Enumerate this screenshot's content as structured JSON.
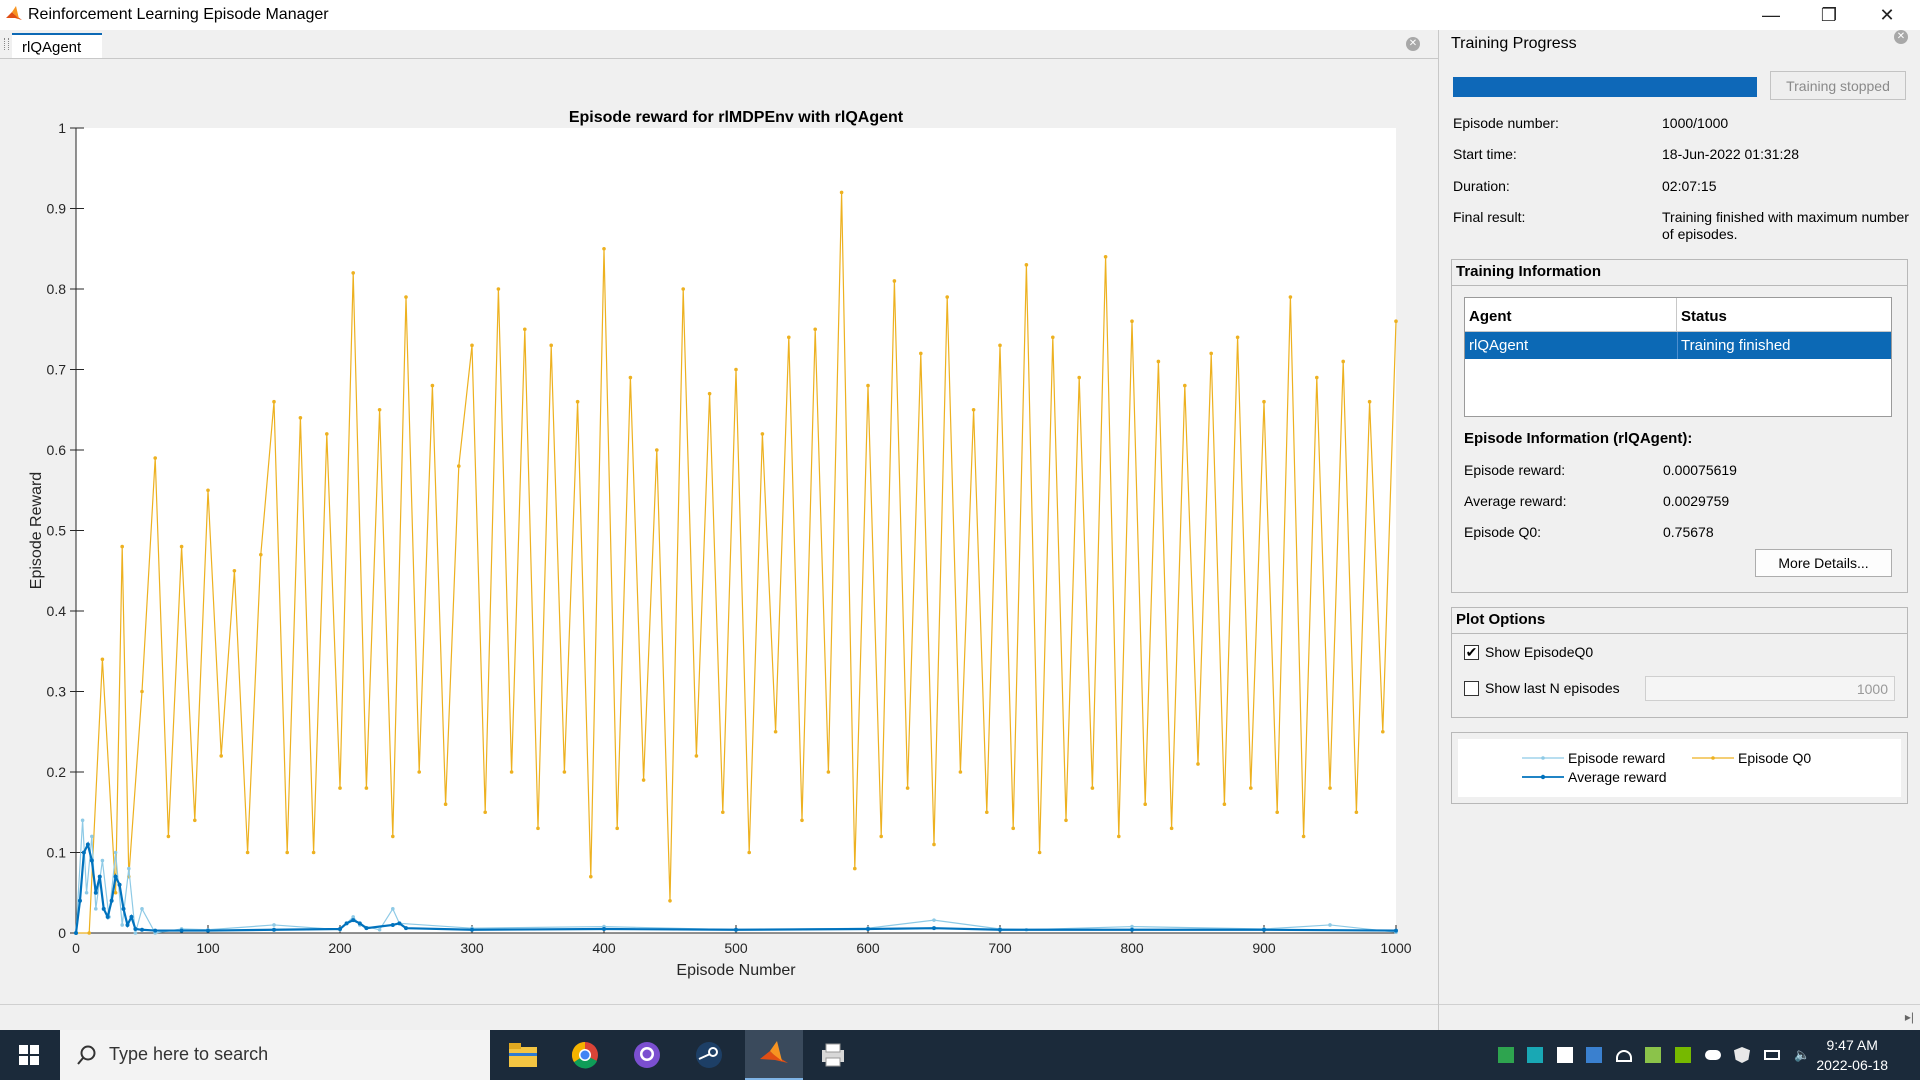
{
  "window": {
    "title": "Reinforcement Learning Episode Manager",
    "buttons": {
      "minimize": "—",
      "maximize": "❐",
      "close": "✕"
    }
  },
  "tabs": [
    {
      "label": "rlQAgent"
    }
  ],
  "training_progress": {
    "title": "Training Progress",
    "progress_fraction": 1.0,
    "status_button": "Training stopped",
    "fields": [
      {
        "label": "Episode number:",
        "value": "1000/1000"
      },
      {
        "label": "Start time:",
        "value": "18-Jun-2022 01:31:28"
      },
      {
        "label": "Duration:",
        "value": "02:07:15"
      },
      {
        "label": "Final result:",
        "value": "Training finished with maximum number of episodes."
      }
    ]
  },
  "training_information": {
    "title": "Training Information",
    "table": {
      "headers": [
        "Agent",
        "Status"
      ],
      "rows": [
        [
          "rlQAgent",
          "Training finished"
        ]
      ]
    },
    "episode_info_title": "Episode Information (rlQAgent):",
    "fields": [
      {
        "label": "Episode reward:",
        "value": "0.00075619"
      },
      {
        "label": "Average reward:",
        "value": "0.0029759"
      },
      {
        "label": "Episode Q0:",
        "value": "0.75678"
      }
    ],
    "more_details_button": "More Details..."
  },
  "plot_options": {
    "title": "Plot Options",
    "show_q0": {
      "label": "Show EpisodeQ0",
      "checked": true
    },
    "show_last_n": {
      "label": "Show last N episodes",
      "checked": false,
      "value": "1000"
    }
  },
  "legend": {
    "items": [
      {
        "label": "Episode reward",
        "color": "#8ecae6"
      },
      {
        "label": "Episode Q0",
        "color": "#edb120"
      },
      {
        "label": "Average reward",
        "color": "#0072bd"
      }
    ]
  },
  "chart_data": {
    "type": "line",
    "title": "Episode reward for rlMDPEnv with rlQAgent",
    "xlabel": "Episode Number",
    "ylabel": "Episode Reward",
    "xlim": [
      0,
      1000
    ],
    "ylim": [
      0,
      1
    ],
    "xticks": [
      0,
      100,
      200,
      300,
      400,
      500,
      600,
      700,
      800,
      900,
      1000
    ],
    "yticks": [
      0,
      0.1,
      0.2,
      0.3,
      0.4,
      0.5,
      0.6,
      0.7,
      0.8,
      0.9,
      1
    ],
    "series": [
      {
        "name": "Episode reward",
        "color": "#8ecae6",
        "x": [
          0,
          5,
          8,
          12,
          15,
          20,
          25,
          30,
          35,
          40,
          45,
          50,
          60,
          80,
          100,
          150,
          200,
          210,
          215,
          230,
          240,
          245,
          300,
          400,
          500,
          600,
          650,
          700,
          720,
          800,
          900,
          950,
          1000
        ],
        "y": [
          0.0,
          0.14,
          0.05,
          0.12,
          0.03,
          0.09,
          0.02,
          0.1,
          0.01,
          0.08,
          0.0,
          0.03,
          0.0,
          0.005,
          0.004,
          0.01,
          0.004,
          0.02,
          0.01,
          0.004,
          0.03,
          0.012,
          0.006,
          0.008,
          0.004,
          0.006,
          0.016,
          0.005,
          0.004,
          0.008,
          0.005,
          0.01,
          0.001
        ]
      },
      {
        "name": "Average reward",
        "color": "#0072bd",
        "x": [
          0,
          3,
          6,
          9,
          12,
          15,
          18,
          21,
          24,
          27,
          30,
          33,
          36,
          39,
          42,
          45,
          50,
          60,
          80,
          100,
          150,
          200,
          205,
          210,
          215,
          220,
          240,
          245,
          250,
          300,
          400,
          500,
          600,
          650,
          700,
          800,
          900,
          1000
        ],
        "y": [
          0.0,
          0.04,
          0.1,
          0.11,
          0.09,
          0.05,
          0.07,
          0.03,
          0.02,
          0.04,
          0.07,
          0.06,
          0.03,
          0.01,
          0.02,
          0.005,
          0.004,
          0.003,
          0.003,
          0.003,
          0.004,
          0.005,
          0.012,
          0.016,
          0.012,
          0.006,
          0.01,
          0.012,
          0.006,
          0.004,
          0.005,
          0.004,
          0.005,
          0.006,
          0.004,
          0.004,
          0.004,
          0.003
        ]
      },
      {
        "name": "Episode Q0",
        "color": "#edb120",
        "x": [
          0,
          10,
          20,
          30,
          35,
          40,
          50,
          60,
          70,
          80,
          90,
          100,
          110,
          120,
          130,
          140,
          150,
          160,
          170,
          180,
          190,
          200,
          210,
          220,
          230,
          240,
          250,
          260,
          270,
          280,
          290,
          300,
          310,
          320,
          330,
          340,
          350,
          360,
          370,
          380,
          390,
          400,
          410,
          420,
          430,
          440,
          450,
          460,
          470,
          480,
          490,
          500,
          510,
          520,
          530,
          540,
          550,
          560,
          570,
          580,
          590,
          600,
          610,
          620,
          630,
          640,
          650,
          660,
          670,
          680,
          690,
          700,
          710,
          720,
          730,
          740,
          750,
          760,
          770,
          780,
          790,
          800,
          810,
          820,
          830,
          840,
          850,
          860,
          870,
          880,
          890,
          900,
          910,
          920,
          930,
          940,
          950,
          960,
          970,
          980,
          990,
          1000
        ],
        "y": [
          0.0,
          0.0,
          0.34,
          0.05,
          0.48,
          0.07,
          0.3,
          0.59,
          0.12,
          0.48,
          0.14,
          0.55,
          0.22,
          0.45,
          0.1,
          0.47,
          0.66,
          0.1,
          0.64,
          0.1,
          0.62,
          0.18,
          0.82,
          0.18,
          0.65,
          0.12,
          0.79,
          0.2,
          0.68,
          0.16,
          0.58,
          0.73,
          0.15,
          0.8,
          0.2,
          0.75,
          0.13,
          0.73,
          0.2,
          0.66,
          0.07,
          0.85,
          0.13,
          0.69,
          0.19,
          0.6,
          0.04,
          0.8,
          0.22,
          0.67,
          0.15,
          0.7,
          0.1,
          0.62,
          0.25,
          0.74,
          0.14,
          0.75,
          0.2,
          0.92,
          0.08,
          0.68,
          0.12,
          0.81,
          0.18,
          0.72,
          0.11,
          0.79,
          0.2,
          0.65,
          0.15,
          0.73,
          0.13,
          0.83,
          0.1,
          0.74,
          0.14,
          0.69,
          0.18,
          0.84,
          0.12,
          0.76,
          0.16,
          0.71,
          0.13,
          0.68,
          0.21,
          0.72,
          0.16,
          0.74,
          0.18,
          0.66,
          0.15,
          0.79,
          0.12,
          0.69,
          0.18,
          0.71,
          0.15,
          0.66,
          0.25,
          0.76
        ]
      }
    ]
  },
  "taskbar": {
    "search_placeholder": "Type here to search",
    "apps": [
      "file-explorer-icon",
      "chrome-icon",
      "github-desktop-icon",
      "steam-icon",
      "matlab-icon",
      "printer-app-icon"
    ],
    "time": "9:47 AM",
    "date": "2022-06-18"
  }
}
